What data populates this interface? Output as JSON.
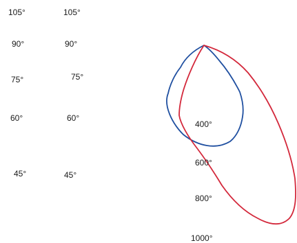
{
  "left_angle_labels": [
    "105°",
    "90°",
    "75°",
    "60°",
    "45°"
  ],
  "middle_angle_labels": [
    "105°",
    "90°",
    "75°",
    "60°",
    "45°"
  ],
  "radial_labels": [
    "400°",
    "600°",
    "800°",
    "1000°"
  ],
  "curves": [
    {
      "id": "blue",
      "color": "#1f4fa0"
    },
    {
      "id": "red",
      "color": "#d3283b"
    }
  ]
}
